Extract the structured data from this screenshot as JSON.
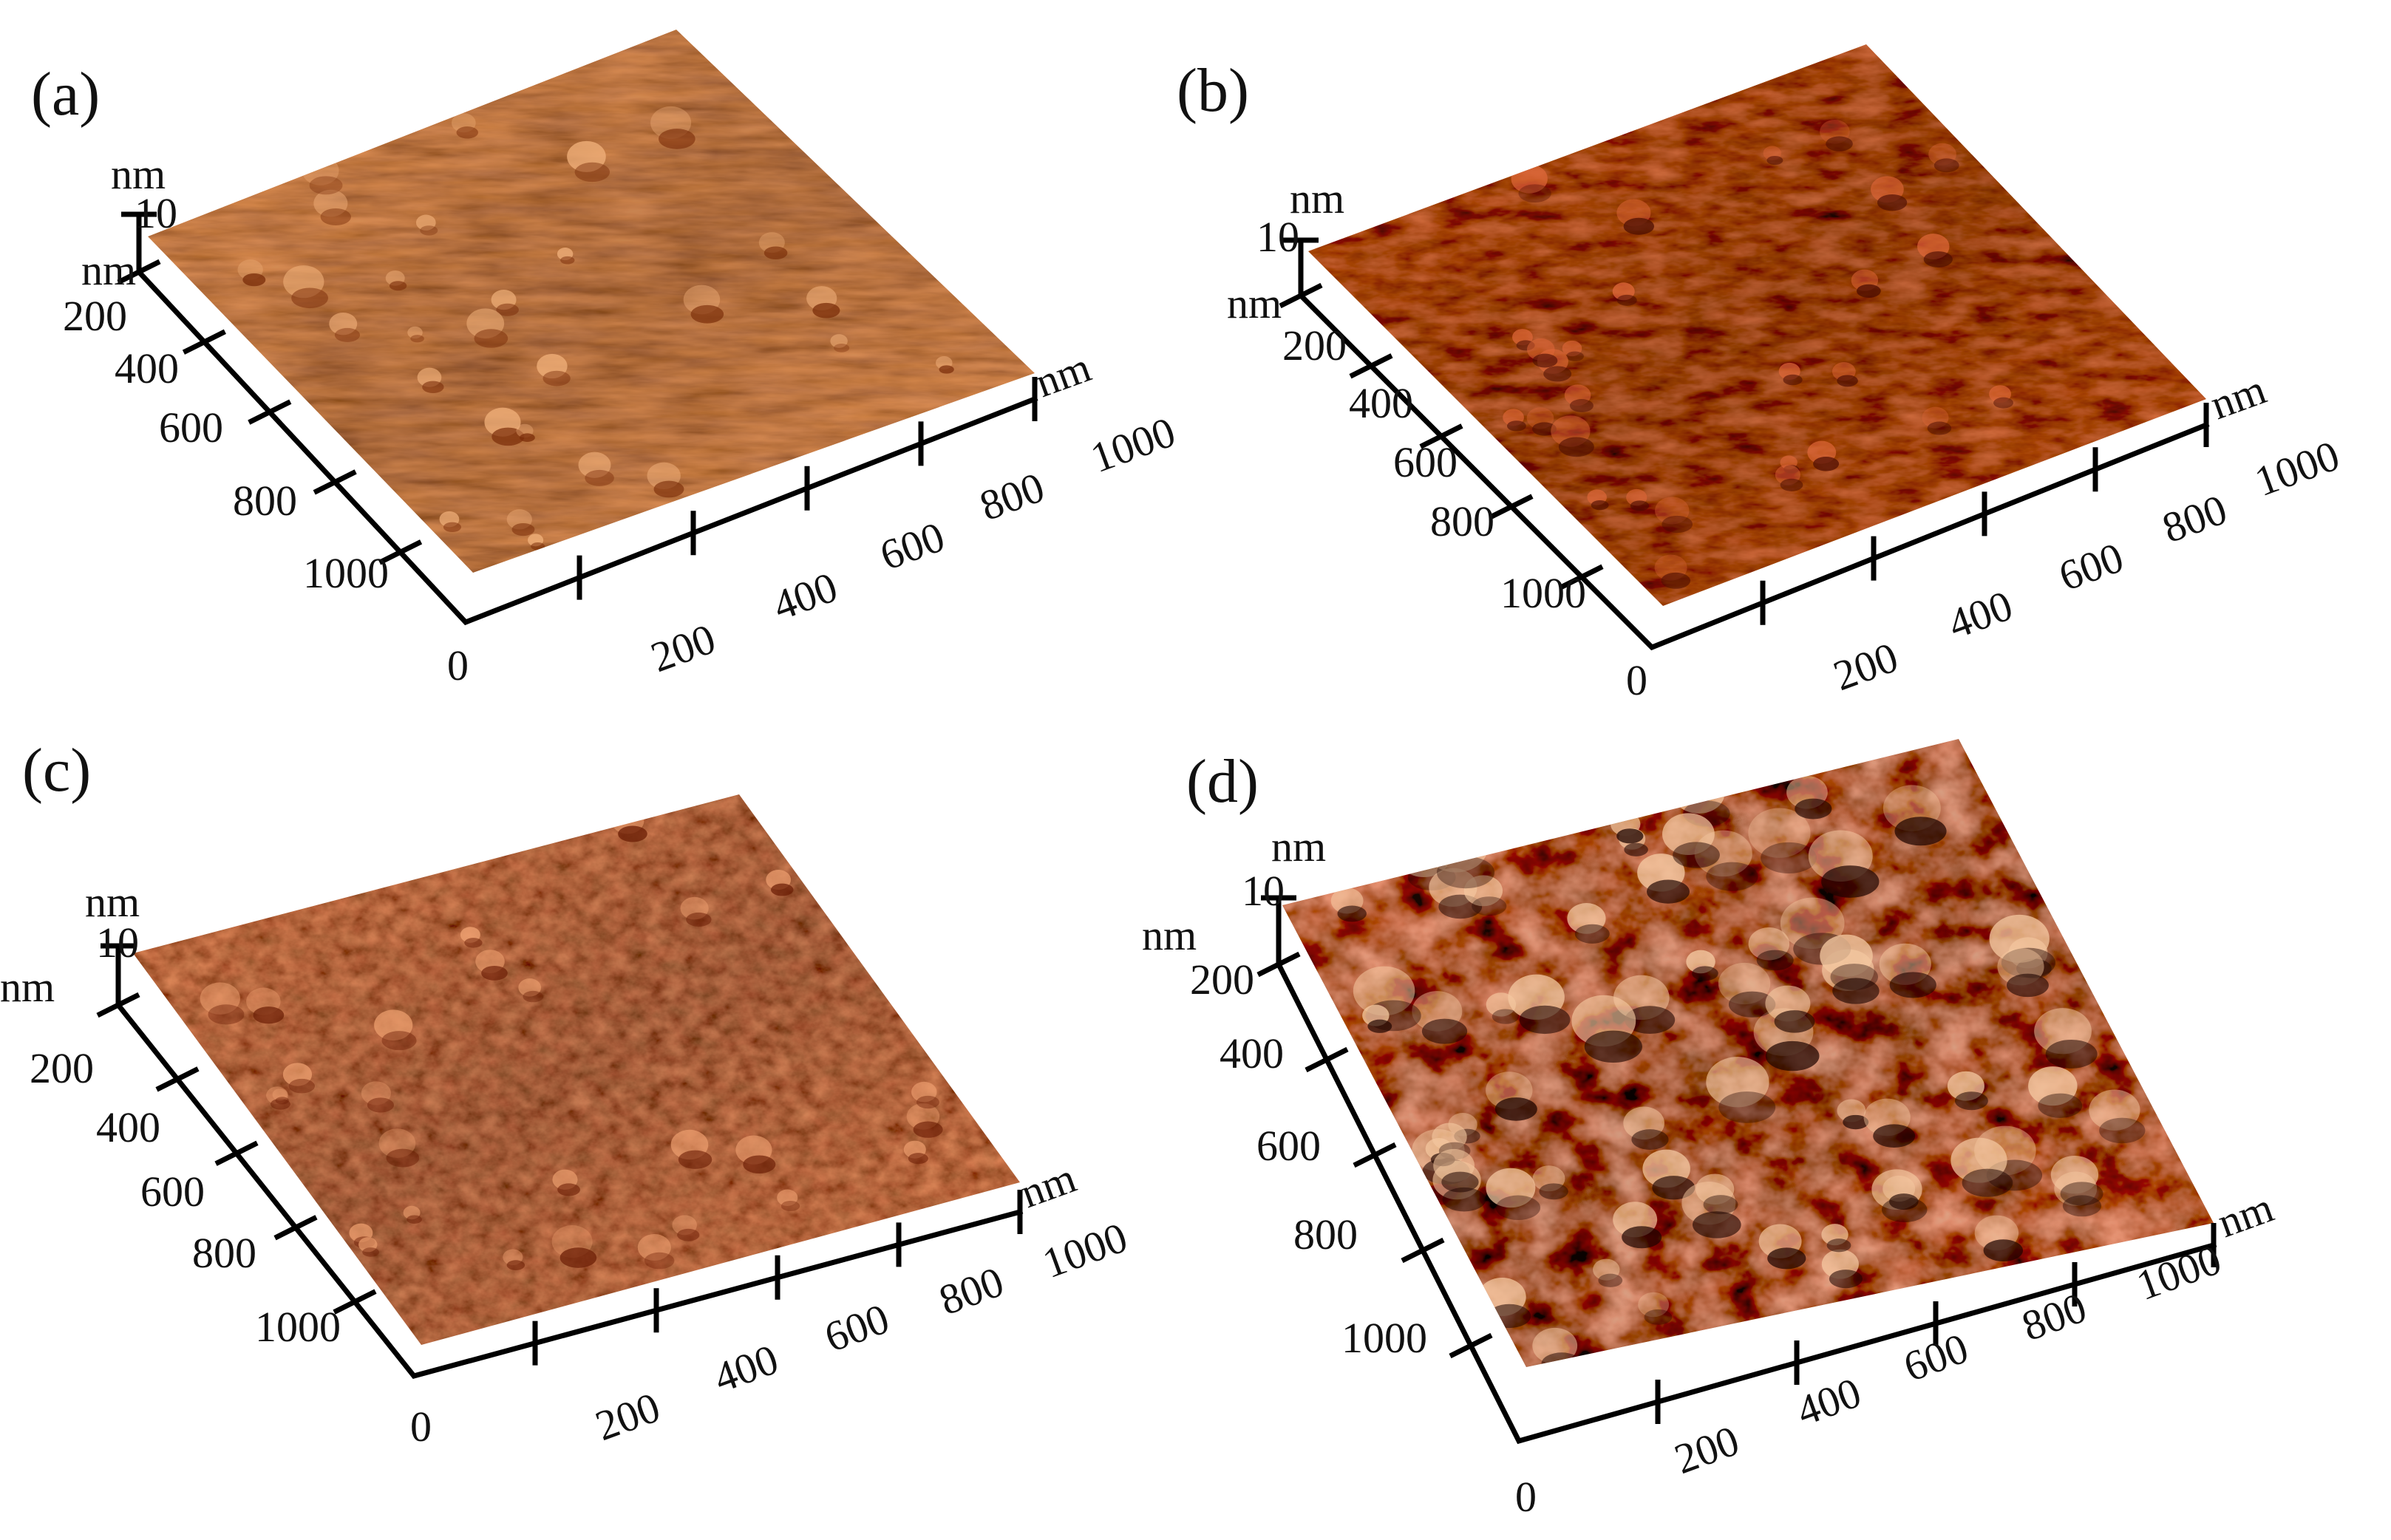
{
  "panels": [
    {
      "id": "a",
      "label": "(a)",
      "z_unit": "nm",
      "z_max": "10",
      "y_unit": "nm",
      "x_unit": "nm",
      "origin": "0",
      "y_ticks": [
        "200",
        "400",
        "600",
        "800",
        "1000"
      ],
      "x_ticks": [
        "200",
        "400",
        "600",
        "800",
        "1000"
      ],
      "surface_colors": {
        "dark": "#7a2c08",
        "mid": "#d0682a",
        "light": "#f0b07a"
      }
    },
    {
      "id": "b",
      "label": "(b)",
      "z_unit": "nm",
      "z_max": "10",
      "y_unit": "nm",
      "x_unit": "nm",
      "origin": "0",
      "y_ticks": [
        "200",
        "400",
        "600",
        "800",
        "1000"
      ],
      "x_ticks": [
        "200",
        "400",
        "600",
        "800",
        "1000"
      ],
      "surface_colors": {
        "dark": "#4a0c02",
        "mid": "#9e2a0a",
        "light": "#e0683a"
      }
    },
    {
      "id": "c",
      "label": "(c)",
      "z_unit": "nm",
      "z_max": "10",
      "y_unit": "nm",
      "x_unit": "nm",
      "origin": "0",
      "y_ticks": [
        "200",
        "400",
        "600",
        "800",
        "1000"
      ],
      "x_ticks": [
        "200",
        "400",
        "600",
        "800",
        "1000"
      ],
      "surface_colors": {
        "dark": "#6a1c04",
        "mid": "#c04a18",
        "light": "#eea070"
      }
    },
    {
      "id": "d",
      "label": "(d)",
      "z_unit": "nm",
      "z_max": "10",
      "y_unit": "nm",
      "x_unit": "nm",
      "origin": "0",
      "y_ticks": [
        "200",
        "400",
        "600",
        "800",
        "1000"
      ],
      "x_ticks": [
        "200",
        "400",
        "600",
        "800",
        "1000"
      ],
      "surface_colors": {
        "dark": "#1e0400",
        "mid": "#a02e0c",
        "light": "#f4c8a0"
      }
    }
  ]
}
